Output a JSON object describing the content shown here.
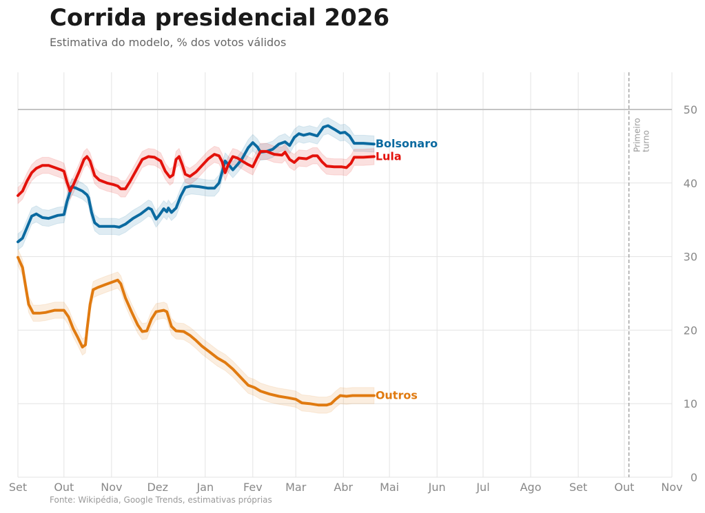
{
  "chart_data": {
    "type": "line",
    "title": "Corrida presidencial 2026",
    "subtitle": "Estimativa do modelo, % dos votos válidos",
    "source": "Fonte: Wikipédia, Google Trends, estimativas próprias",
    "xlabel": "",
    "ylabel": "",
    "x_unit": "days since 1 Sep 2025",
    "x_ticks": [
      {
        "day": 0,
        "label": "Set"
      },
      {
        "day": 30,
        "label": "Out"
      },
      {
        "day": 61,
        "label": "Nov"
      },
      {
        "day": 91,
        "label": "Dez"
      },
      {
        "day": 122,
        "label": "Jan"
      },
      {
        "day": 153,
        "label": "Fev"
      },
      {
        "day": 181,
        "label": "Mar"
      },
      {
        "day": 212,
        "label": "Abr"
      },
      {
        "day": 242,
        "label": "Mai"
      },
      {
        "day": 273,
        "label": "Jun"
      },
      {
        "day": 303,
        "label": "Jul"
      },
      {
        "day": 334,
        "label": "Ago"
      },
      {
        "day": 365,
        "label": "Set"
      },
      {
        "day": 395,
        "label": "Out"
      },
      {
        "day": 426,
        "label": "Nov"
      }
    ],
    "xlim": [
      0,
      426
    ],
    "ylim": [
      0,
      55
    ],
    "y_ticks": [
      0,
      10,
      20,
      30,
      40,
      50
    ],
    "y_axis_side": "right",
    "reference_line_y": 50,
    "grid": true,
    "annotation": {
      "day": 398,
      "label_line1": "Primeiro",
      "label_line2": "turno"
    },
    "series": [
      {
        "name": "Bolsonaro",
        "color": "#0b6aa0",
        "band": 1.1,
        "points": [
          [
            0,
            32
          ],
          [
            3,
            32.5
          ],
          [
            6,
            34
          ],
          [
            9,
            35.5
          ],
          [
            12,
            35.8
          ],
          [
            16,
            35.3
          ],
          [
            20,
            35.2
          ],
          [
            26,
            35.6
          ],
          [
            30,
            35.7
          ],
          [
            32,
            37.5
          ],
          [
            35,
            39.5
          ],
          [
            38,
            39.3
          ],
          [
            42,
            38.9
          ],
          [
            45,
            38.4
          ],
          [
            46,
            38
          ],
          [
            48,
            36
          ],
          [
            50,
            34.6
          ],
          [
            53,
            34.1
          ],
          [
            58,
            34.1
          ],
          [
            63,
            34.1
          ],
          [
            66,
            34
          ],
          [
            70,
            34.4
          ],
          [
            75,
            35.2
          ],
          [
            80,
            35.8
          ],
          [
            85,
            36.6
          ],
          [
            87,
            36.4
          ],
          [
            90,
            35.1
          ],
          [
            92,
            35.6
          ],
          [
            95,
            36.5
          ],
          [
            97,
            36.1
          ],
          [
            98,
            36.6
          ],
          [
            100,
            36
          ],
          [
            103,
            36.6
          ],
          [
            106,
            38.2
          ],
          [
            109,
            39.4
          ],
          [
            113,
            39.6
          ],
          [
            118,
            39.5
          ],
          [
            124,
            39.3
          ],
          [
            128,
            39.3
          ],
          [
            131,
            40
          ],
          [
            133,
            41.5
          ],
          [
            135,
            43
          ],
          [
            138,
            42.3
          ],
          [
            140,
            41.8
          ],
          [
            143,
            42.5
          ],
          [
            146,
            43.3
          ],
          [
            150,
            44.8
          ],
          [
            153,
            45.5
          ],
          [
            156,
            44.9
          ],
          [
            158,
            44.2
          ],
          [
            162,
            44.3
          ],
          [
            166,
            44.6
          ],
          [
            170,
            45.3
          ],
          [
            174,
            45.6
          ],
          [
            177,
            45.1
          ],
          [
            180,
            46.2
          ],
          [
            183,
            46.7
          ],
          [
            186,
            46.5
          ],
          [
            190,
            46.7
          ],
          [
            195,
            46.4
          ],
          [
            199,
            47.6
          ],
          [
            202,
            47.8
          ],
          [
            207,
            47.2
          ],
          [
            210,
            46.8
          ],
          [
            213,
            46.9
          ],
          [
            216,
            46.4
          ],
          [
            219,
            45.4
          ],
          [
            225,
            45.4
          ],
          [
            232,
            45.3
          ]
        ]
      },
      {
        "name": "Lula",
        "color": "#e3120b",
        "band": 1.1,
        "points": [
          [
            0,
            38.3
          ],
          [
            3,
            38.9
          ],
          [
            6,
            40.3
          ],
          [
            9,
            41.4
          ],
          [
            12,
            42
          ],
          [
            16,
            42.4
          ],
          [
            20,
            42.4
          ],
          [
            24,
            42.1
          ],
          [
            28,
            41.8
          ],
          [
            30,
            41.6
          ],
          [
            32,
            40.1
          ],
          [
            34,
            38.9
          ],
          [
            36,
            39.7
          ],
          [
            40,
            41.6
          ],
          [
            43,
            43.2
          ],
          [
            45,
            43.6
          ],
          [
            47,
            43
          ],
          [
            50,
            41
          ],
          [
            53,
            40.4
          ],
          [
            58,
            40
          ],
          [
            62,
            39.8
          ],
          [
            65,
            39.6
          ],
          [
            67,
            39.2
          ],
          [
            70,
            39.2
          ],
          [
            73,
            40.2
          ],
          [
            77,
            41.7
          ],
          [
            81,
            43.2
          ],
          [
            85,
            43.6
          ],
          [
            89,
            43.5
          ],
          [
            93,
            43
          ],
          [
            96,
            41.6
          ],
          [
            99,
            40.8
          ],
          [
            101,
            41.1
          ],
          [
            103,
            43.2
          ],
          [
            105,
            43.6
          ],
          [
            107,
            42.5
          ],
          [
            109,
            41.2
          ],
          [
            112,
            40.9
          ],
          [
            116,
            41.5
          ],
          [
            120,
            42.4
          ],
          [
            124,
            43.3
          ],
          [
            128,
            43.9
          ],
          [
            131,
            43.7
          ],
          [
            133,
            42.9
          ],
          [
            135,
            41.4
          ],
          [
            137,
            42.5
          ],
          [
            140,
            43.6
          ],
          [
            143,
            43.4
          ],
          [
            146,
            43
          ],
          [
            150,
            42.5
          ],
          [
            153,
            42.2
          ],
          [
            156,
            43.5
          ],
          [
            158,
            44.3
          ],
          [
            162,
            44.3
          ],
          [
            167,
            43.9
          ],
          [
            172,
            43.8
          ],
          [
            174,
            44.2
          ],
          [
            177,
            43.2
          ],
          [
            180,
            42.8
          ],
          [
            183,
            43.4
          ],
          [
            188,
            43.3
          ],
          [
            192,
            43.7
          ],
          [
            195,
            43.7
          ],
          [
            198,
            42.9
          ],
          [
            201,
            42.3
          ],
          [
            206,
            42.2
          ],
          [
            211,
            42.2
          ],
          [
            214,
            42.1
          ],
          [
            217,
            42.7
          ],
          [
            219,
            43.5
          ],
          [
            225,
            43.5
          ],
          [
            232,
            43.6
          ]
        ]
      },
      {
        "name": "Outros",
        "color": "#e07a10",
        "band": 1.1,
        "points": [
          [
            0,
            29.9
          ],
          [
            3,
            28.5
          ],
          [
            5,
            26
          ],
          [
            7,
            23.5
          ],
          [
            10,
            22.3
          ],
          [
            14,
            22.3
          ],
          [
            18,
            22.4
          ],
          [
            24,
            22.7
          ],
          [
            30,
            22.7
          ],
          [
            33,
            21.8
          ],
          [
            36,
            20.2
          ],
          [
            39,
            19
          ],
          [
            42,
            17.7
          ],
          [
            44,
            18
          ],
          [
            45,
            20
          ],
          [
            47,
            23.5
          ],
          [
            49,
            25.5
          ],
          [
            52,
            25.8
          ],
          [
            57,
            26.2
          ],
          [
            61,
            26.5
          ],
          [
            65,
            26.8
          ],
          [
            67,
            26.3
          ],
          [
            70,
            24.4
          ],
          [
            74,
            22.5
          ],
          [
            78,
            20.7
          ],
          [
            81,
            19.8
          ],
          [
            84,
            19.9
          ],
          [
            87,
            21.5
          ],
          [
            90,
            22.5
          ],
          [
            95,
            22.7
          ],
          [
            97,
            22.5
          ],
          [
            100,
            20.5
          ],
          [
            103,
            19.9
          ],
          [
            108,
            19.8
          ],
          [
            112,
            19.3
          ],
          [
            116,
            18.6
          ],
          [
            120,
            17.8
          ],
          [
            125,
            17
          ],
          [
            130,
            16.2
          ],
          [
            135,
            15.6
          ],
          [
            140,
            14.7
          ],
          [
            145,
            13.6
          ],
          [
            150,
            12.5
          ],
          [
            154,
            12.2
          ],
          [
            158,
            11.7
          ],
          [
            164,
            11.3
          ],
          [
            170,
            11
          ],
          [
            176,
            10.8
          ],
          [
            181,
            10.6
          ],
          [
            185,
            10.1
          ],
          [
            190,
            10
          ],
          [
            196,
            9.8
          ],
          [
            201,
            9.8
          ],
          [
            204,
            10
          ],
          [
            207,
            10.6
          ],
          [
            210,
            11.1
          ],
          [
            214,
            11
          ],
          [
            218,
            11.1
          ],
          [
            225,
            11.1
          ],
          [
            232,
            11.1
          ]
        ]
      }
    ]
  }
}
